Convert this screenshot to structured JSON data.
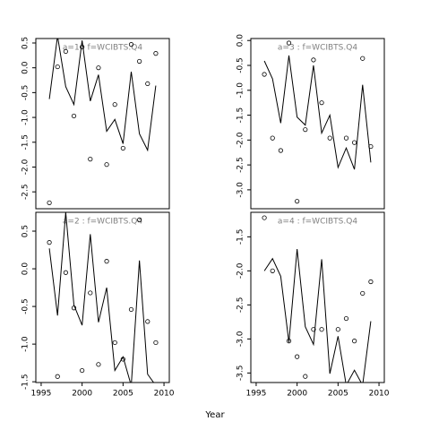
{
  "xlabel": "Year",
  "chart_data": [
    {
      "type": "line",
      "title": "a=1  :  f=WCIBTS.Q4",
      "x": [
        1996,
        1997,
        1998,
        1999,
        2000,
        2001,
        2002,
        2003,
        2004,
        2005,
        2006,
        2007,
        2008,
        2009
      ],
      "series": [
        {
          "style": "line",
          "color": "#000000",
          "values": [
            -0.63,
            0.64,
            -0.38,
            -0.74,
            0.55,
            -0.67,
            -0.14,
            -1.28,
            -1.04,
            -1.53,
            -0.08,
            -1.33,
            -1.66,
            -0.36
          ]
        },
        {
          "style": "points",
          "color": "#000000",
          "values": [
            -2.72,
            0.02,
            0.33,
            -0.97,
            0.42,
            -1.84,
            0.0,
            -1.95,
            -0.74,
            -1.62,
            0.47,
            0.13,
            -0.32,
            0.29
          ]
        }
      ],
      "xlim": [
        1994.35,
        2010.65
      ],
      "ylim": [
        -2.84,
        0.59
      ],
      "yticks": [
        {
          "value": 0.5,
          "label": "0.5"
        },
        {
          "value": 0,
          "label": "0.0"
        },
        -0.5,
        {
          "value": -1,
          "label": "-1.0"
        },
        -1.5,
        {
          "value": -2,
          "label": "-2.0"
        },
        -2.5
      ]
    },
    {
      "type": "line",
      "title": "a=3  :  f=WCIBTS.Q4",
      "x": [
        1996,
        1997,
        1998,
        1999,
        2000,
        2001,
        2002,
        2003,
        2004,
        2005,
        2006,
        2007,
        2008,
        2009
      ],
      "series": [
        {
          "style": "line",
          "color": "#000000",
          "values": [
            -0.41,
            -0.77,
            -1.66,
            -0.3,
            -1.54,
            -1.7,
            -0.5,
            -1.86,
            -1.5,
            -2.55,
            -2.16,
            -2.59,
            -0.89,
            -2.45
          ]
        },
        {
          "style": "points",
          "color": "#000000",
          "values": [
            -0.68,
            -1.96,
            -2.21,
            -0.05,
            -3.23,
            -1.79,
            -0.39,
            -1.25,
            -1.96,
            null,
            -1.96,
            -2.05,
            -0.36,
            -2.13
          ]
        }
      ],
      "xlim": [
        1994.35,
        2010.65
      ],
      "ylim": [
        -3.38,
        0.04
      ],
      "yticks": [
        {
          "value": 0,
          "label": "0.0"
        },
        -0.5,
        {
          "value": -1,
          "label": "-1.0"
        },
        -1.5,
        {
          "value": -2,
          "label": "-2.0"
        },
        -2.5,
        {
          "value": -3,
          "label": "-3.0"
        }
      ]
    },
    {
      "type": "line",
      "title": "a=2  :  f=WCIBTS.Q4",
      "x": [
        1996,
        1997,
        1998,
        1999,
        2000,
        2001,
        2002,
        2003,
        2004,
        2005,
        2006,
        2007,
        2008,
        2009
      ],
      "series": [
        {
          "style": "line",
          "color": "#000000",
          "values": [
            0.27,
            -0.62,
            0.75,
            -0.48,
            -0.75,
            0.46,
            -0.71,
            -0.25,
            -1.35,
            -1.17,
            -1.55,
            0.11,
            -1.4,
            -1.55
          ]
        },
        {
          "style": "points",
          "color": "#000000",
          "values": [
            0.35,
            -1.43,
            -0.05,
            -0.52,
            -1.35,
            -0.32,
            -1.27,
            0.1,
            -0.98,
            -1.2,
            -0.54,
            0.65,
            -0.7,
            -0.98
          ]
        }
      ],
      "xlim": [
        1994.35,
        2010.65
      ],
      "ylim": [
        -1.51,
        0.75
      ],
      "xticks": [
        1995,
        2000,
        2005,
        2010
      ],
      "yticks": [
        {
          "value": 0.5,
          "label": "0.5"
        },
        {
          "value": 0,
          "label": "0.0"
        },
        -0.5,
        {
          "value": -1,
          "label": "-1.0"
        },
        -1.5
      ]
    },
    {
      "type": "line",
      "title": "a=4  :  f=WCIBTS.Q4",
      "x": [
        1996,
        1997,
        1998,
        1999,
        2000,
        2001,
        2002,
        2003,
        2004,
        2005,
        2006,
        2007,
        2008,
        2009
      ],
      "series": [
        {
          "style": "line",
          "color": "#000000",
          "values": [
            -2.0,
            -1.82,
            -2.08,
            -3.05,
            -1.68,
            -2.82,
            -3.08,
            -1.83,
            -3.51,
            -2.96,
            -3.68,
            -3.46,
            -3.68,
            -2.74
          ]
        },
        {
          "style": "points",
          "color": "#000000",
          "values": [
            -1.22,
            -2.0,
            null,
            -3.03,
            -3.26,
            -3.55,
            -2.86,
            -2.86,
            null,
            -2.86,
            -2.7,
            -3.03,
            -2.33,
            -2.16
          ]
        }
      ],
      "xlim": [
        1994.35,
        2010.65
      ],
      "ylim": [
        -3.64,
        -1.14
      ],
      "xticks": [
        1995,
        2000,
        2005,
        2010
      ],
      "yticks": [
        -1.5,
        {
          "value": -2,
          "label": "-2.0"
        },
        -2.5,
        {
          "value": -3,
          "label": "-3.0"
        },
        -3.5
      ]
    }
  ]
}
